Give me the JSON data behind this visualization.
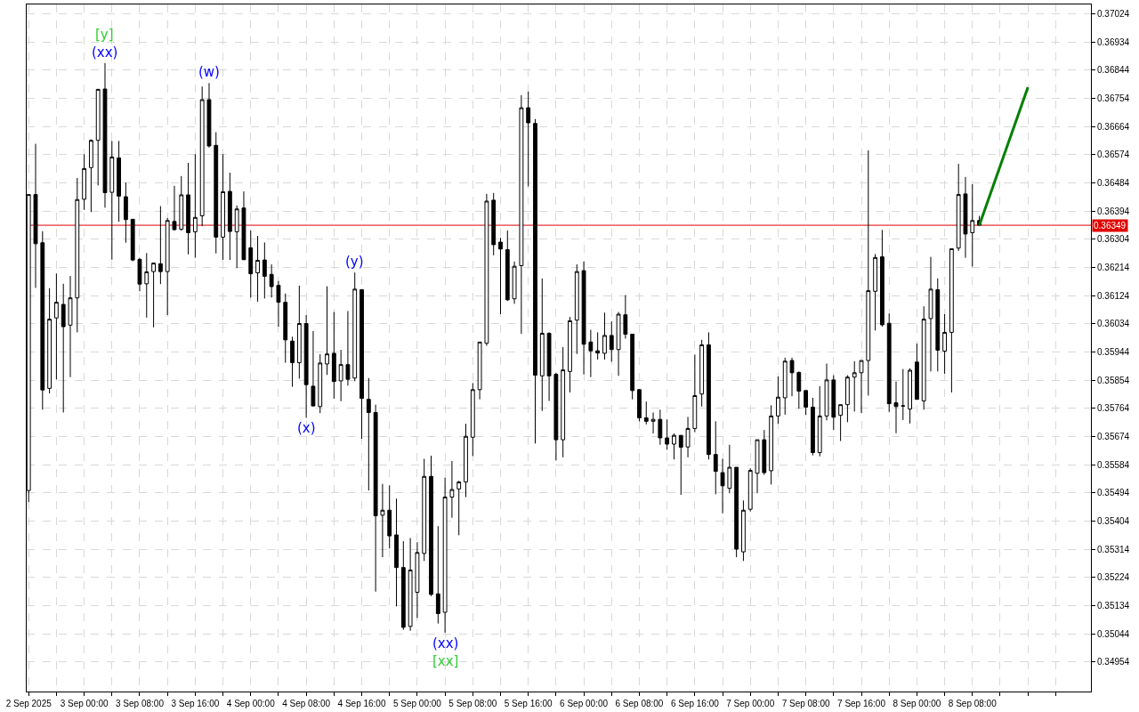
{
  "chart_data": {
    "type": "candlestick",
    "color": "#000000",
    "x": [
      "2025-09-02T16:00",
      "2025-09-02T17:00",
      "2025-09-02T18:00",
      "2025-09-02T19:00",
      "2025-09-02T20:00",
      "2025-09-02T21:00",
      "2025-09-02T22:00",
      "2025-09-02T23:00",
      "2025-09-03T00:00",
      "2025-09-03T01:00",
      "2025-09-03T02:00",
      "2025-09-03T03:00",
      "2025-09-03T04:00",
      "2025-09-03T05:00",
      "2025-09-03T06:00",
      "2025-09-03T07:00",
      "2025-09-03T08:00",
      "2025-09-03T09:00",
      "2025-09-03T10:00",
      "2025-09-03T11:00",
      "2025-09-03T12:00",
      "2025-09-03T13:00",
      "2025-09-03T14:00",
      "2025-09-03T15:00",
      "2025-09-03T16:00",
      "2025-09-03T17:00",
      "2025-09-03T18:00",
      "2025-09-03T19:00",
      "2025-09-03T20:00",
      "2025-09-03T21:00",
      "2025-09-03T22:00",
      "2025-09-03T23:00",
      "2025-09-04T00:00",
      "2025-09-04T01:00",
      "2025-09-04T02:00",
      "2025-09-04T03:00",
      "2025-09-04T04:00",
      "2025-09-04T05:00",
      "2025-09-04T06:00",
      "2025-09-04T07:00",
      "2025-09-04T08:00",
      "2025-09-04T09:00",
      "2025-09-04T10:00",
      "2025-09-04T11:00",
      "2025-09-04T12:00",
      "2025-09-04T13:00",
      "2025-09-04T14:00",
      "2025-09-04T15:00",
      "2025-09-04T16:00",
      "2025-09-04T17:00",
      "2025-09-04T18:00",
      "2025-09-04T19:00",
      "2025-09-04T20:00",
      "2025-09-04T21:00",
      "2025-09-04T22:00",
      "2025-09-04T23:00",
      "2025-09-05T00:00",
      "2025-09-05T01:00",
      "2025-09-05T02:00",
      "2025-09-05T03:00",
      "2025-09-05T04:00",
      "2025-09-05T05:00",
      "2025-09-05T06:00",
      "2025-09-05T07:00",
      "2025-09-05T08:00",
      "2025-09-05T09:00",
      "2025-09-05T10:00",
      "2025-09-05T11:00",
      "2025-09-05T12:00",
      "2025-09-05T13:00",
      "2025-09-05T14:00",
      "2025-09-05T15:00",
      "2025-09-05T16:00",
      "2025-09-05T17:00",
      "2025-09-05T18:00",
      "2025-09-05T19:00",
      "2025-09-05T20:00",
      "2025-09-05T21:00",
      "2025-09-05T22:00",
      "2025-09-05T23:00",
      "2025-09-06T00:00",
      "2025-09-06T01:00",
      "2025-09-06T02:00",
      "2025-09-06T03:00",
      "2025-09-06T04:00",
      "2025-09-06T05:00",
      "2025-09-06T06:00",
      "2025-09-06T07:00",
      "2025-09-06T08:00",
      "2025-09-06T09:00",
      "2025-09-06T10:00",
      "2025-09-06T11:00",
      "2025-09-06T12:00",
      "2025-09-06T13:00",
      "2025-09-06T14:00",
      "2025-09-06T15:00",
      "2025-09-06T16:00",
      "2025-09-06T17:00",
      "2025-09-06T18:00",
      "2025-09-06T19:00",
      "2025-09-06T20:00",
      "2025-09-06T21:00",
      "2025-09-06T22:00",
      "2025-09-06T23:00",
      "2025-09-07T00:00",
      "2025-09-07T01:00",
      "2025-09-07T02:00",
      "2025-09-07T03:00",
      "2025-09-07T04:00",
      "2025-09-07T05:00",
      "2025-09-07T06:00",
      "2025-09-07T07:00",
      "2025-09-07T08:00",
      "2025-09-07T09:00",
      "2025-09-07T10:00",
      "2025-09-07T11:00",
      "2025-09-07T12:00",
      "2025-09-07T13:00",
      "2025-09-07T14:00",
      "2025-09-07T15:00",
      "2025-09-07T16:00",
      "2025-09-07T17:00",
      "2025-09-07T18:00",
      "2025-09-07T19:00",
      "2025-09-07T20:00",
      "2025-09-07T21:00",
      "2025-09-07T22:00",
      "2025-09-07T23:00",
      "2025-09-08T00:00",
      "2025-09-08T01:00",
      "2025-09-08T02:00",
      "2025-09-08T03:00",
      "2025-09-08T04:00",
      "2025-09-08T05:00",
      "2025-09-08T06:00",
      "2025-09-08T07:00",
      "2025-09-08T08:00",
      "2025-09-08T09:00"
    ],
    "ohlc": [
      [
        0.35502,
        0.36447,
        0.35465,
        0.36447
      ],
      [
        0.36447,
        0.36609,
        0.36149,
        0.3629
      ],
      [
        0.36293,
        0.3633,
        0.3576,
        0.35823
      ],
      [
        0.35828,
        0.36148,
        0.35812,
        0.36049
      ],
      [
        0.36053,
        0.36195,
        0.35857,
        0.36103
      ],
      [
        0.36096,
        0.36162,
        0.35751,
        0.36025
      ],
      [
        0.3603,
        0.36187,
        0.35864,
        0.36117
      ],
      [
        0.36117,
        0.365,
        0.36007,
        0.36431
      ],
      [
        0.36432,
        0.36576,
        0.36398,
        0.3653
      ],
      [
        0.36533,
        0.36623,
        0.36391,
        0.3662
      ],
      [
        0.3662,
        0.36784,
        0.36476,
        0.36783
      ],
      [
        0.36784,
        0.36867,
        0.36405,
        0.36453
      ],
      [
        0.36454,
        0.36618,
        0.36239,
        0.36567
      ],
      [
        0.36564,
        0.36618,
        0.3636,
        0.36442
      ],
      [
        0.3644,
        0.36485,
        0.36293,
        0.36367
      ],
      [
        0.36368,
        0.36368,
        0.36234,
        0.36238
      ],
      [
        0.3624,
        0.36245,
        0.36138,
        0.36161
      ],
      [
        0.36162,
        0.3626,
        0.36054,
        0.362
      ],
      [
        0.36201,
        0.36229,
        0.36023,
        0.36228
      ],
      [
        0.36226,
        0.3641,
        0.36161,
        0.36201
      ],
      [
        0.36201,
        0.36372,
        0.36062,
        0.36364
      ],
      [
        0.36361,
        0.36475,
        0.36332,
        0.36335
      ],
      [
        0.36336,
        0.36506,
        0.36332,
        0.36446
      ],
      [
        0.36446,
        0.36548,
        0.36256,
        0.36325
      ],
      [
        0.36328,
        0.36576,
        0.36245,
        0.36374
      ],
      [
        0.36379,
        0.36792,
        0.36346,
        0.3675
      ],
      [
        0.3675,
        0.36803,
        0.36597,
        0.36602
      ],
      [
        0.36604,
        0.36646,
        0.36259,
        0.36311
      ],
      [
        0.36311,
        0.36576,
        0.36238,
        0.36456
      ],
      [
        0.36457,
        0.36517,
        0.36238,
        0.36329
      ],
      [
        0.36328,
        0.36412,
        0.36212,
        0.36401
      ],
      [
        0.36404,
        0.36457,
        0.36238,
        0.36239
      ],
      [
        0.36277,
        0.36332,
        0.36118,
        0.36194
      ],
      [
        0.36197,
        0.36315,
        0.36105,
        0.36237
      ],
      [
        0.36238,
        0.36294,
        0.36115,
        0.36186
      ],
      [
        0.36192,
        0.36224,
        0.36118,
        0.36153
      ],
      [
        0.36157,
        0.36171,
        0.36025,
        0.36103
      ],
      [
        0.36103,
        0.36131,
        0.3591,
        0.35983
      ],
      [
        0.35979,
        0.35993,
        0.35833,
        0.3591
      ],
      [
        0.3591,
        0.36156,
        0.35859,
        0.36035
      ],
      [
        0.36035,
        0.36062,
        0.35734,
        0.3584
      ],
      [
        0.35835,
        0.36011,
        0.3577,
        0.35772
      ],
      [
        0.3577,
        0.35937,
        0.35749,
        0.35909
      ],
      [
        0.35906,
        0.36154,
        0.35871,
        0.35938
      ],
      [
        0.3594,
        0.36072,
        0.35795,
        0.3585
      ],
      [
        0.35852,
        0.35951,
        0.35787,
        0.35904
      ],
      [
        0.35904,
        0.36075,
        0.35837,
        0.35857
      ],
      [
        0.35861,
        0.36198,
        0.35851,
        0.36145
      ],
      [
        0.36143,
        0.36145,
        0.35667,
        0.35796
      ],
      [
        0.35793,
        0.35861,
        0.35502,
        0.35751
      ],
      [
        0.35751,
        0.35776,
        0.35179,
        0.35421
      ],
      [
        0.35423,
        0.35523,
        0.35289,
        0.35439
      ],
      [
        0.35439,
        0.35518,
        0.35317,
        0.35357
      ],
      [
        0.3536,
        0.35476,
        0.35132,
        0.35256
      ],
      [
        0.35256,
        0.3534,
        0.35057,
        0.35065
      ],
      [
        0.35068,
        0.3535,
        0.35054,
        0.35248
      ],
      [
        0.35177,
        0.35337,
        0.35095,
        0.35304
      ],
      [
        0.35301,
        0.35603,
        0.35277,
        0.35547
      ],
      [
        0.35547,
        0.35613,
        0.35165,
        0.3517
      ],
      [
        0.35172,
        0.35388,
        0.35077,
        0.35109
      ],
      [
        0.35113,
        0.35543,
        0.35048,
        0.35481
      ],
      [
        0.35481,
        0.35596,
        0.35415,
        0.35505
      ],
      [
        0.35507,
        0.35533,
        0.35359,
        0.35529
      ],
      [
        0.35529,
        0.35715,
        0.35481,
        0.35675
      ],
      [
        0.35672,
        0.35845,
        0.35612,
        0.35824
      ],
      [
        0.35824,
        0.35976,
        0.35793,
        0.35976
      ],
      [
        0.35972,
        0.36449,
        0.35964,
        0.36426
      ],
      [
        0.36429,
        0.36452,
        0.36253,
        0.36287
      ],
      [
        0.36295,
        0.36309,
        0.36065,
        0.36273
      ],
      [
        0.36271,
        0.36332,
        0.36107,
        0.36111
      ],
      [
        0.36114,
        0.36233,
        0.36098,
        0.36218
      ],
      [
        0.3622,
        0.36764,
        0.36002,
        0.36724
      ],
      [
        0.36724,
        0.36776,
        0.36473,
        0.36676
      ],
      [
        0.36674,
        0.36688,
        0.35652,
        0.3587
      ],
      [
        0.35868,
        0.36179,
        0.35756,
        0.36004
      ],
      [
        0.36004,
        0.36007,
        0.35788,
        0.35868
      ],
      [
        0.35873,
        0.35878,
        0.35598,
        0.35664
      ],
      [
        0.35664,
        0.3596,
        0.35608,
        0.35887
      ],
      [
        0.35882,
        0.36056,
        0.35815,
        0.36044
      ],
      [
        0.36046,
        0.36224,
        0.35938,
        0.36201
      ],
      [
        0.36204,
        0.36233,
        0.35873,
        0.35969
      ],
      [
        0.35976,
        0.36015,
        0.35864,
        0.35948
      ],
      [
        0.35948,
        0.36007,
        0.3592,
        0.35941
      ],
      [
        0.3594,
        0.3607,
        0.3592,
        0.35997
      ],
      [
        0.35997,
        0.36042,
        0.35913,
        0.35952
      ],
      [
        0.35952,
        0.36072,
        0.35868,
        0.36065
      ],
      [
        0.36063,
        0.36126,
        0.35987,
        0.36001
      ],
      [
        0.36001,
        0.36001,
        0.35793,
        0.35821
      ],
      [
        0.35824,
        0.35826,
        0.35723,
        0.35734
      ],
      [
        0.35734,
        0.35786,
        0.35713,
        0.35723
      ],
      [
        0.35723,
        0.35751,
        0.35684,
        0.35729
      ],
      [
        0.35729,
        0.3576,
        0.35648,
        0.3567
      ],
      [
        0.3567,
        0.35729,
        0.35632,
        0.3565
      ],
      [
        0.3565,
        0.35684,
        0.35601,
        0.35678
      ],
      [
        0.35678,
        0.35678,
        0.35488,
        0.3564
      ],
      [
        0.35641,
        0.35737,
        0.35608,
        0.357
      ],
      [
        0.357,
        0.35936,
        0.35688,
        0.35805
      ],
      [
        0.3581,
        0.35983,
        0.3577,
        0.35967
      ],
      [
        0.35967,
        0.36007,
        0.35601,
        0.35617
      ],
      [
        0.35617,
        0.35723,
        0.3549,
        0.35563
      ],
      [
        0.35559,
        0.35603,
        0.35429,
        0.35517
      ],
      [
        0.35509,
        0.35648,
        0.35493,
        0.35576
      ],
      [
        0.35576,
        0.35576,
        0.35289,
        0.35315
      ],
      [
        0.35306,
        0.3547,
        0.35277,
        0.35439
      ],
      [
        0.35442,
        0.35573,
        0.35435,
        0.35566
      ],
      [
        0.35557,
        0.35664,
        0.35493,
        0.35664
      ],
      [
        0.35664,
        0.35695,
        0.35552,
        0.35559
      ],
      [
        0.35565,
        0.35774,
        0.35521,
        0.3574
      ],
      [
        0.3574,
        0.35866,
        0.35715,
        0.358
      ],
      [
        0.35798,
        0.35926,
        0.35744,
        0.35915
      ],
      [
        0.35917,
        0.35926,
        0.35803,
        0.35878
      ],
      [
        0.35879,
        0.35882,
        0.35763,
        0.35819
      ],
      [
        0.35821,
        0.35821,
        0.35743,
        0.35768
      ],
      [
        0.35768,
        0.35798,
        0.35614,
        0.35623
      ],
      [
        0.35623,
        0.35835,
        0.35611,
        0.3574
      ],
      [
        0.3574,
        0.35907,
        0.35726,
        0.35855
      ],
      [
        0.35855,
        0.3587,
        0.35695,
        0.35736
      ],
      [
        0.35742,
        0.35777,
        0.3566,
        0.35776
      ],
      [
        0.35776,
        0.3587,
        0.3572,
        0.35864
      ],
      [
        0.35864,
        0.35915,
        0.35754,
        0.35878
      ],
      [
        0.35878,
        0.35917,
        0.35749,
        0.35917
      ],
      [
        0.35917,
        0.36588,
        0.35805,
        0.3614
      ],
      [
        0.36138,
        0.36257,
        0.36013,
        0.36246
      ],
      [
        0.36248,
        0.36334,
        0.36025,
        0.36031
      ],
      [
        0.36036,
        0.36067,
        0.35753,
        0.35779
      ],
      [
        0.35782,
        0.3585,
        0.35685,
        0.3577
      ],
      [
        0.35772,
        0.3589,
        0.35727,
        0.35772
      ],
      [
        0.35762,
        0.35892,
        0.35716,
        0.35886
      ],
      [
        0.35912,
        0.35971,
        0.35793,
        0.35793
      ],
      [
        0.35788,
        0.3609,
        0.3576,
        0.36049
      ],
      [
        0.36051,
        0.36248,
        0.35882,
        0.36145
      ],
      [
        0.36143,
        0.36179,
        0.35882,
        0.3595
      ],
      [
        0.35947,
        0.36065,
        0.35875,
        0.36007
      ],
      [
        0.36007,
        0.36274,
        0.35815,
        0.36274
      ],
      [
        0.36276,
        0.36545,
        0.36267,
        0.36447
      ],
      [
        0.36449,
        0.36503,
        0.36245,
        0.36321
      ],
      [
        0.36325,
        0.3648,
        0.36217,
        0.36364
      ],
      [
        0.36364,
        0.36379,
        0.36349,
        0.36349
      ]
    ],
    "series": [
      {
        "type": "line",
        "color": "#008000",
        "x": [
          "2025-09-08T09:00",
          "2025-09-08T16:00"
        ],
        "values": [
          0.36349,
          0.3679
        ]
      }
    ],
    "xlim": [
      "2025-09-02T15:43",
      "2025-09-09T01:05"
    ],
    "xticks": [
      {
        "value": "2025-09-02T16:00",
        "label": "2 Sep 2025"
      },
      {
        "value": "2025-09-02T20:00",
        "label": null
      },
      {
        "value": "2025-09-03T00:00",
        "label": "3 Sep 00:00"
      },
      {
        "value": "2025-09-03T04:00",
        "label": null
      },
      {
        "value": "2025-09-03T08:00",
        "label": "3 Sep 08:00"
      },
      {
        "value": "2025-09-03T12:00",
        "label": null
      },
      {
        "value": "2025-09-03T16:00",
        "label": "3 Sep 16:00"
      },
      {
        "value": "2025-09-03T20:00",
        "label": null
      },
      {
        "value": "2025-09-04T00:00",
        "label": "4 Sep 00:00"
      },
      {
        "value": "2025-09-04T04:00",
        "label": null
      },
      {
        "value": "2025-09-04T08:00",
        "label": "4 Sep 08:00"
      },
      {
        "value": "2025-09-04T12:00",
        "label": null
      },
      {
        "value": "2025-09-04T16:00",
        "label": "4 Sep 16:00"
      },
      {
        "value": "2025-09-04T20:00",
        "label": null
      },
      {
        "value": "2025-09-05T00:00",
        "label": "5 Sep 00:00"
      },
      {
        "value": "2025-09-05T04:00",
        "label": null
      },
      {
        "value": "2025-09-05T08:00",
        "label": "5 Sep 08:00"
      },
      {
        "value": "2025-09-05T12:00",
        "label": null
      },
      {
        "value": "2025-09-05T16:00",
        "label": "5 Sep 16:00"
      },
      {
        "value": "2025-09-05T20:00",
        "label": null
      },
      {
        "value": "2025-09-06T00:00",
        "label": "6 Sep 00:00"
      },
      {
        "value": "2025-09-06T04:00",
        "label": null
      },
      {
        "value": "2025-09-06T08:00",
        "label": "6 Sep 08:00"
      },
      {
        "value": "2025-09-06T12:00",
        "label": null
      },
      {
        "value": "2025-09-06T16:00",
        "label": "6 Sep 16:00"
      },
      {
        "value": "2025-09-06T20:00",
        "label": null
      },
      {
        "value": "2025-09-07T00:00",
        "label": "7 Sep 00:00"
      },
      {
        "value": "2025-09-07T04:00",
        "label": null
      },
      {
        "value": "2025-09-07T08:00",
        "label": "7 Sep 08:00"
      },
      {
        "value": "2025-09-07T12:00",
        "label": null
      },
      {
        "value": "2025-09-07T16:00",
        "label": "7 Sep 16:00"
      },
      {
        "value": "2025-09-07T20:00",
        "label": null
      },
      {
        "value": "2025-09-08T00:00",
        "label": "8 Sep 00:00"
      },
      {
        "value": "2025-09-08T04:00",
        "label": null
      },
      {
        "value": "2025-09-08T08:00",
        "label": "8 Sep 08:00"
      },
      {
        "value": "2025-09-08T12:00",
        "label": null
      },
      {
        "value": "2025-09-08T16:00",
        "label": null
      },
      {
        "value": "2025-09-08T20:00",
        "label": null
      }
    ],
    "ylim": [
      0.3486,
      0.37054
    ],
    "yticks": [
      0.34954,
      0.35044,
      0.35134,
      0.35224,
      0.35314,
      0.35404,
      0.35494,
      0.35584,
      0.35674,
      0.35764,
      0.35854,
      0.35944,
      0.36034,
      0.36124,
      0.36214,
      0.36304,
      0.36394,
      0.36484,
      0.36574,
      0.36664,
      0.36754,
      0.36844,
      0.36934,
      0.37024
    ],
    "grid": true,
    "ref_lines": [
      {
        "axis": "y",
        "value": 0.36349,
        "label": "0.36349",
        "color": "#e00000"
      }
    ],
    "annotations": [
      {
        "text": "(xx)",
        "x": "2025-09-03T03:00",
        "y": 0.36867
      },
      {
        "text": "[y]",
        "x": "2025-09-03T03:00",
        "y": 0.36867
      },
      {
        "text": "(w)",
        "x": "2025-09-03T18:00",
        "y": 0.36803
      },
      {
        "text": "(x)",
        "x": "2025-09-04T08:00",
        "y": 0.35734
      },
      {
        "text": "(y)",
        "x": "2025-09-04T15:00",
        "y": 0.36198
      },
      {
        "text": "(xx)",
        "x": "2025-09-05T04:00",
        "y": 0.35048
      },
      {
        "text": "[xx]",
        "x": "2025-09-05T04:00",
        "y": 0.35048
      }
    ]
  }
}
